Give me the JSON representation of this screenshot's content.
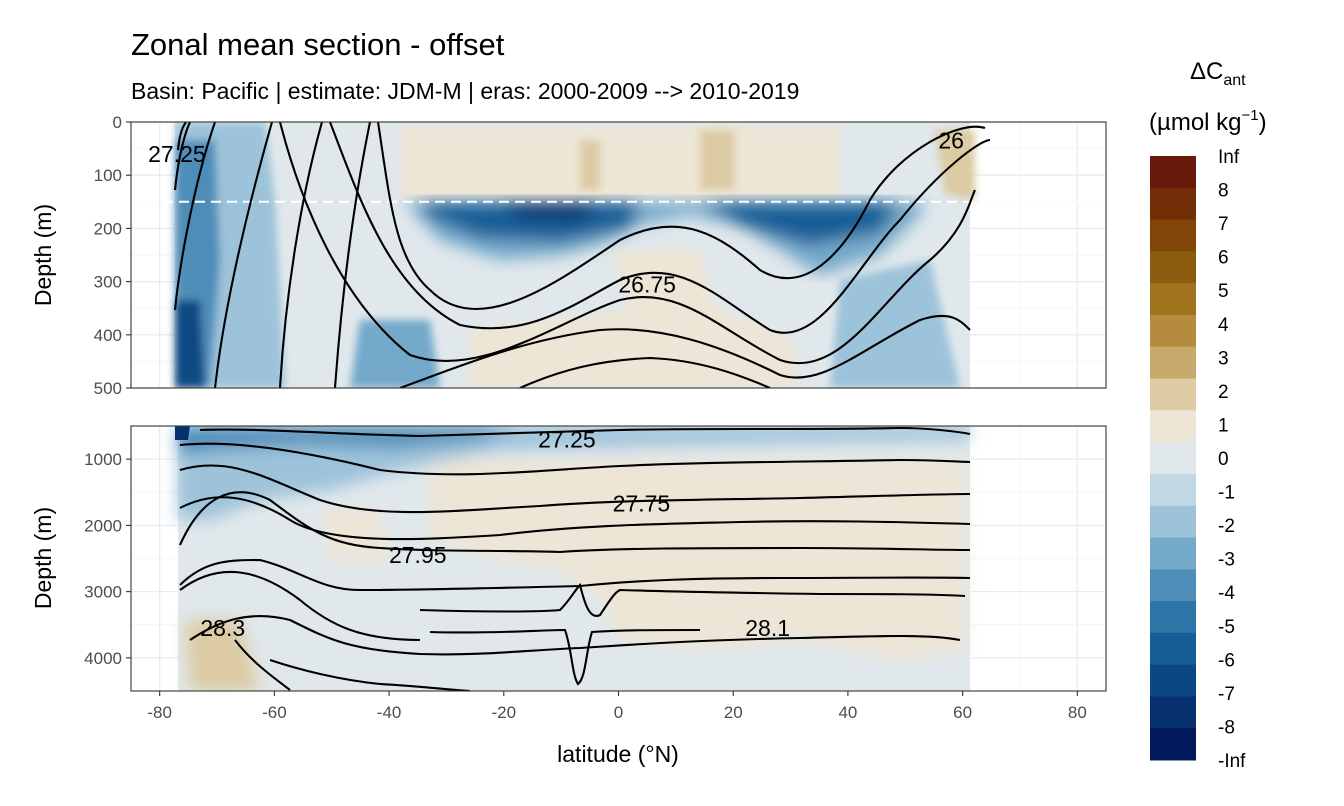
{
  "chart_data": {
    "type": "contour",
    "title": "Zonal mean section - offset",
    "subtitle": "Basin: Pacific | estimate: JDM-M | eras: 2000-2009 --> 2010-2019",
    "xlabel": "latitude (°N)",
    "ylabel": "Depth (m)",
    "xlim": [
      -85,
      85
    ],
    "x_ticks": [
      -80,
      -60,
      -40,
      -20,
      0,
      20,
      40,
      60,
      80
    ],
    "x_tick_labels": [
      "-80",
      "-60",
      "-40",
      "-20",
      "0",
      "20",
      "40",
      "60",
      "80"
    ],
    "panels": [
      {
        "name": "upper",
        "ylim": [
          0,
          500
        ],
        "y_ticks": [
          0,
          100,
          200,
          300,
          400,
          500
        ],
        "y_tick_labels": [
          "0",
          "100",
          "200",
          "300",
          "400",
          "500"
        ],
        "reference_depth_line": 150,
        "contour_labels": [
          {
            "text": "27.25",
            "x": -77,
            "y": 60
          },
          {
            "text": "26",
            "x": 58,
            "y": 35
          },
          {
            "text": "26.75",
            "x": 5,
            "y": 305
          }
        ]
      },
      {
        "name": "lower",
        "ylim": [
          500,
          4500
        ],
        "y_ticks": [
          1000,
          2000,
          3000,
          4000
        ],
        "y_tick_labels": [
          "1000",
          "2000",
          "3000",
          "4000"
        ],
        "contour_labels": [
          {
            "text": "27.25",
            "x": -9,
            "y": 700
          },
          {
            "text": "27.75",
            "x": 4,
            "y": 1670
          },
          {
            "text": "27.95",
            "x": -35,
            "y": 2450
          },
          {
            "text": "28.3",
            "x": -69,
            "y": 3550
          },
          {
            "text": "28.1",
            "x": 26,
            "y": 3550
          }
        ]
      }
    ],
    "legend": {
      "title_main": "ΔC",
      "title_sub": "ant",
      "units_main": "(µmol kg",
      "units_sup": "−1",
      "units_close": ")",
      "labels": [
        "Inf",
        "8",
        "7",
        "6",
        "5",
        "4",
        "3",
        "2",
        "1",
        "0",
        "-1",
        "-2",
        "-3",
        "-4",
        "-5",
        "-6",
        "-7",
        "-8",
        "-Inf"
      ],
      "colors": [
        "#67190a",
        "#722e06",
        "#804507",
        "#8c5d0e",
        "#a0741c",
        "#b58c3e",
        "#c7a96c",
        "#dccba3",
        "#ede5d6",
        "#e0e8ec",
        "#c2d7e4",
        "#9dc3da",
        "#74a9ca",
        "#4f8db9",
        "#2f74a7",
        "#155f96",
        "#0b4883",
        "#07306f",
        "#021a5c"
      ]
    }
  }
}
